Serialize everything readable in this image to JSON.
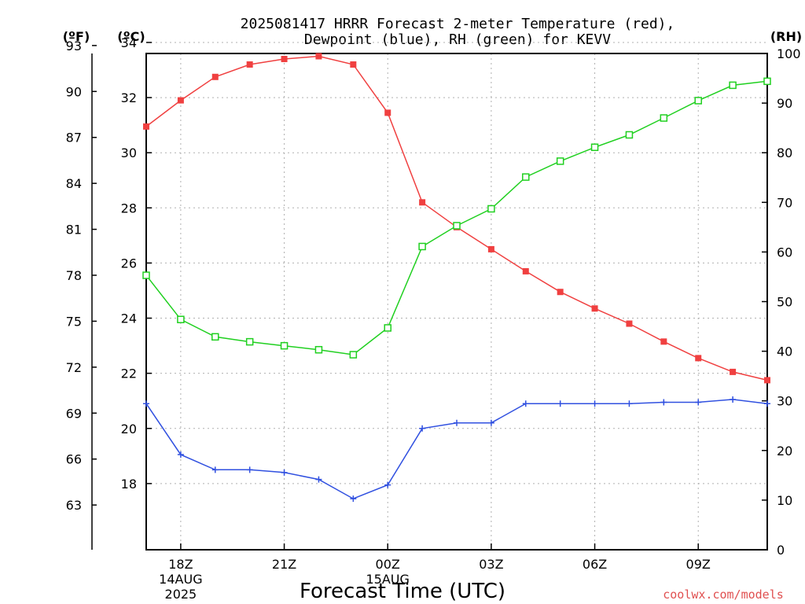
{
  "chart_data": {
    "type": "line",
    "title_lines": [
      "2025081417 HRRR Forecast 2-meter Temperature (red),",
      "Dewpoint (blue), RH (green) for KEVV"
    ],
    "xlabel": "Forecast Time (UTC)",
    "credit": "coolwx.com/models",
    "units": {
      "left": "(ºF)",
      "inner": "(ºC)",
      "right": "(RH)"
    },
    "x": [
      "17Z",
      "18Z",
      "19Z",
      "20Z",
      "21Z",
      "22Z",
      "23Z",
      "00Z",
      "01Z",
      "02Z",
      "03Z",
      "04Z",
      "05Z",
      "06Z",
      "07Z",
      "08Z",
      "09Z",
      "10Z",
      "11Z"
    ],
    "x_ticks": [
      {
        "label": "18Z",
        "index": 1,
        "sub": [
          "14AUG",
          "2025"
        ]
      },
      {
        "label": "21Z",
        "index": 4,
        "sub": []
      },
      {
        "label": "00Z",
        "index": 7,
        "sub": [
          "15AUG"
        ]
      },
      {
        "label": "03Z",
        "index": 10,
        "sub": []
      },
      {
        "label": "06Z",
        "index": 13,
        "sub": []
      },
      {
        "label": "09Z",
        "index": 16,
        "sub": []
      }
    ],
    "ylim_c": [
      15.6,
      33.6
    ],
    "ylim_rh": [
      0,
      100
    ],
    "yticks_c": [
      18,
      20,
      22,
      24,
      26,
      28,
      30,
      32,
      34
    ],
    "yticks_f": [
      63,
      66,
      69,
      72,
      75,
      78,
      81,
      84,
      87,
      90,
      93
    ],
    "yticks_rh": [
      0,
      10,
      20,
      30,
      40,
      50,
      60,
      70,
      80,
      90,
      100
    ],
    "grid": true,
    "series": [
      {
        "name": "Temperature",
        "axis": "c",
        "color": "#f04040",
        "marker": "filled-square",
        "values": [
          30.95,
          31.9,
          32.75,
          33.2,
          33.4,
          33.5,
          33.2,
          31.45,
          28.2,
          27.3,
          26.5,
          25.7,
          24.95,
          24.35,
          23.8,
          23.15,
          22.55,
          22.05,
          21.75
        ]
      },
      {
        "name": "Dewpoint",
        "axis": "c",
        "color": "#3050e0",
        "marker": "plus",
        "values": [
          20.9,
          19.05,
          18.5,
          18.5,
          18.4,
          18.15,
          17.45,
          17.95,
          20.0,
          20.2,
          20.2,
          20.9,
          20.9,
          20.9,
          20.9,
          20.95,
          20.95,
          21.05,
          20.9
        ]
      },
      {
        "name": "RH",
        "axis": "rh",
        "color": "#20d020",
        "marker": "open-square",
        "values": [
          55.3,
          46.4,
          42.9,
          41.9,
          41.1,
          40.3,
          39.3,
          44.7,
          61.1,
          65.3,
          68.7,
          75.1,
          78.3,
          81.1,
          83.6,
          87.0,
          90.5,
          93.6,
          94.4
        ]
      }
    ]
  }
}
